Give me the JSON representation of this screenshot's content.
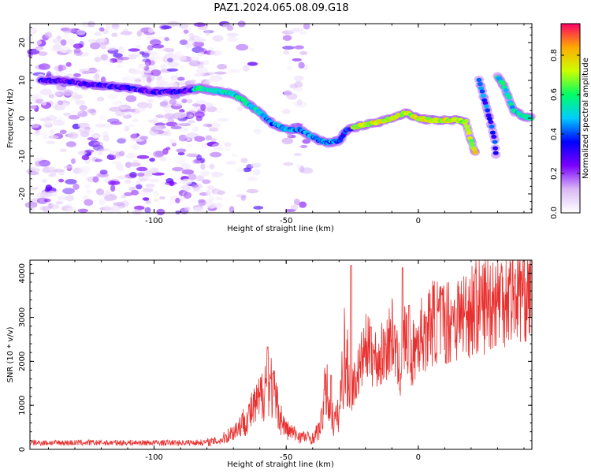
{
  "title": "PAZ1.2024.065.08.09.G18",
  "colors": {
    "snr_line": "#e8312f",
    "axis": "#000000",
    "background": "#ffffff"
  },
  "chart_data": [
    {
      "type": "heatmap",
      "xlabel": "Height of straight line (km)",
      "ylabel": "Frequency (Hz)",
      "xlim": [
        -147,
        43
      ],
      "ylim": [
        -25,
        25
      ],
      "xticks": [
        -100,
        -50,
        0
      ],
      "yticks": [
        -20,
        -10,
        0,
        10,
        20
      ],
      "colorbar": {
        "label": "Normalized spectral amplitude",
        "range": [
          0,
          0.96
        ],
        "ticks": [
          0.0,
          0.2,
          0.4,
          0.6,
          0.8
        ],
        "colormap": [
          "#ffffff",
          "#d9b8f5",
          "#7a00ff",
          "#0000ff",
          "#00ccff",
          "#00ff66",
          "#ccff00",
          "#ffaa00",
          "#ff0066"
        ]
      },
      "ridge": [
        [
          -143,
          10
        ],
        [
          -135,
          10
        ],
        [
          -125,
          9
        ],
        [
          -110,
          8
        ],
        [
          -100,
          7
        ],
        [
          -90,
          7
        ],
        [
          -83,
          8
        ],
        [
          -75,
          7
        ],
        [
          -70,
          6.5
        ],
        [
          -65,
          4
        ],
        [
          -60,
          1.5
        ],
        [
          -55,
          -1.5
        ],
        [
          -50,
          -3
        ],
        [
          -45,
          -3
        ],
        [
          -40,
          -5
        ],
        [
          -35,
          -6.5
        ],
        [
          -30,
          -6
        ],
        [
          -27,
          -3
        ],
        [
          -22,
          -2
        ],
        [
          -15,
          -1
        ],
        [
          -10,
          0
        ],
        [
          -5,
          1.5
        ],
        [
          0,
          0
        ],
        [
          5,
          -0.5
        ],
        [
          10,
          -0.5
        ],
        [
          15,
          -0.5
        ],
        [
          18,
          -1
        ],
        [
          20,
          -6
        ],
        [
          22,
          -10
        ]
      ],
      "ridge_secondary": [
        [
          23,
          10
        ],
        [
          25,
          5
        ],
        [
          27,
          0
        ],
        [
          29,
          -6
        ],
        [
          29.5,
          -11
        ]
      ],
      "ridge_tertiary": [
        [
          30,
          11
        ],
        [
          32,
          9
        ],
        [
          34,
          6
        ],
        [
          36,
          2
        ],
        [
          40,
          0.5
        ],
        [
          43,
          0
        ]
      ]
    },
    {
      "type": "line",
      "xlabel": "Height of straight line (km)",
      "ylabel": "SNR (10 * v/v)",
      "xlim": [
        -147,
        43
      ],
      "ylim": [
        0,
        4300
      ],
      "xticks": [
        -100,
        -50,
        0
      ],
      "yticks": [
        0,
        1000,
        2000,
        3000,
        4000
      ],
      "series": [
        {
          "x": [
            -147,
            -130,
            -110,
            -90,
            -80,
            -75,
            -70,
            -65,
            -60,
            -57,
            -55,
            -52,
            -50,
            -45,
            -40,
            -37,
            -35,
            -32,
            -30,
            -28,
            -26,
            -24,
            -20,
            -15,
            -10,
            -7,
            -5,
            -3,
            0,
            5,
            10,
            15,
            20,
            25,
            30,
            35,
            40,
            43
          ],
          "values": [
            150,
            150,
            150,
            150,
            160,
            200,
            400,
            700,
            1100,
            1700,
            1300,
            700,
            450,
            300,
            250,
            500,
            1400,
            600,
            800,
            2200,
            1500,
            1500,
            2300,
            2000,
            2600,
            1700,
            2600,
            2000,
            2500,
            2900,
            2900,
            3000,
            3200,
            3300,
            3500,
            3600,
            3700,
            3700
          ],
          "peaks": [
            [
              -57,
              2330
            ],
            [
              -33,
              1680
            ],
            [
              -25.5,
              4180
            ],
            [
              -18,
              2780
            ],
            [
              -9,
              2820
            ],
            [
              -6,
              4130
            ],
            [
              -3.5,
              3270
            ],
            [
              3,
              3010
            ],
            [
              13,
              3250
            ]
          ]
        }
      ]
    }
  ]
}
